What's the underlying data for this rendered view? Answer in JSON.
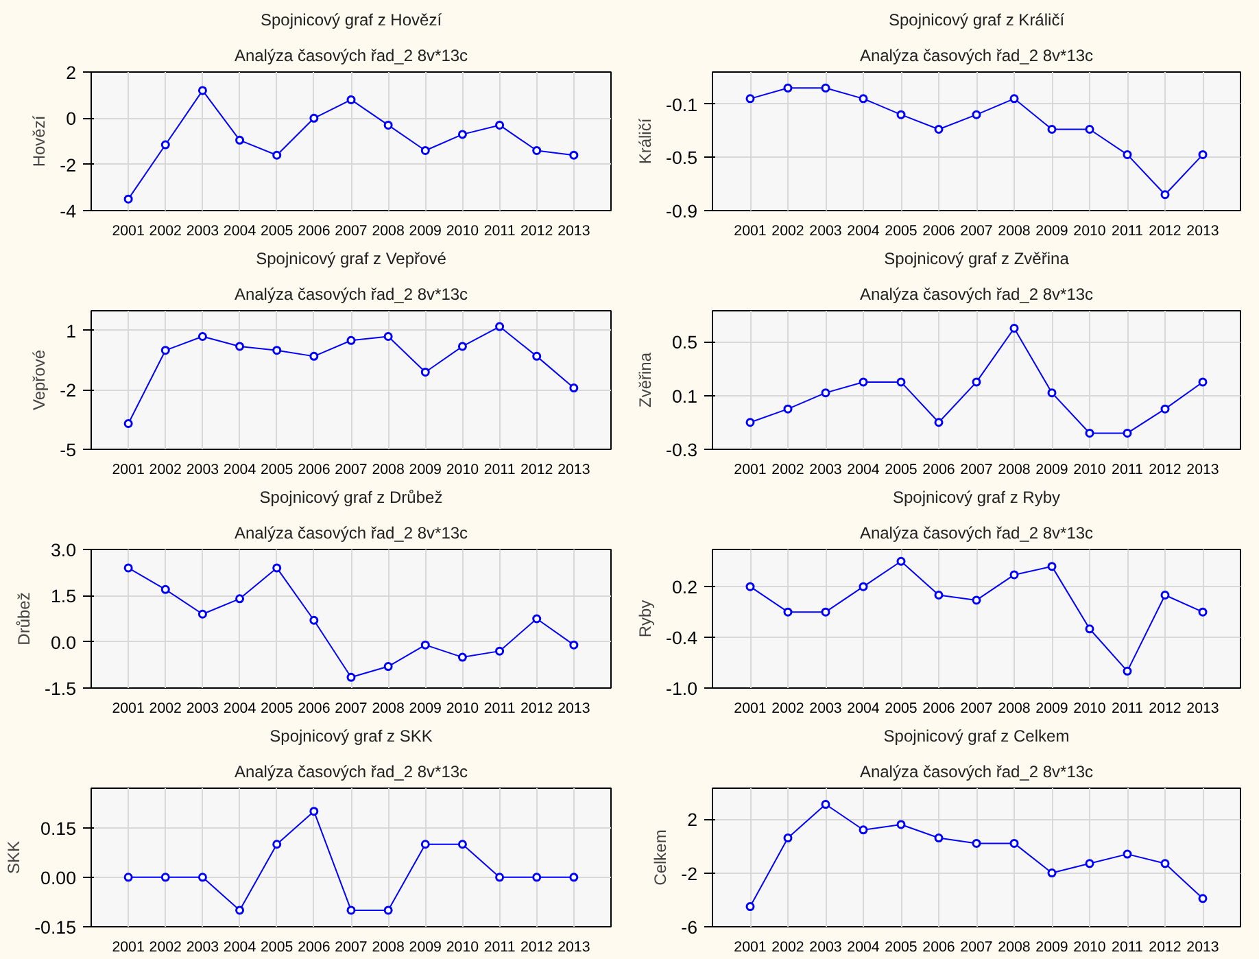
{
  "chart_data": [
    {
      "type": "line",
      "title": "Spojnicový graf z Hovězí",
      "subtitle": "Analýza časových řad_2 8v*13c",
      "ylabel": "Hovězí",
      "x": [
        2001,
        2002,
        2003,
        2004,
        2005,
        2006,
        2007,
        2008,
        2009,
        2010,
        2011,
        2012,
        2013
      ],
      "xlim": [
        2000,
        2014
      ],
      "xticks": [
        2001,
        2002,
        2003,
        2004,
        2005,
        2006,
        2007,
        2008,
        2009,
        2010,
        2011,
        2012,
        2013
      ],
      "ylim": [
        -4,
        2
      ],
      "yticks": [
        -4,
        -2,
        0,
        2
      ],
      "grid": true,
      "marker": "circle",
      "line_style": "solid",
      "series": [
        {
          "color": "#0000ff",
          "values": [
            -3.5,
            -1.15,
            1.2,
            -0.95,
            -1.6,
            0.0,
            0.8,
            -0.3,
            -1.4,
            -0.7,
            -0.3,
            -1.4,
            -1.6
          ]
        }
      ]
    },
    {
      "type": "line",
      "title": "Spojnicový graf z Králičí",
      "subtitle": "Analýza časových řad_2 8v*13c",
      "ylabel": "Králičí",
      "x": [
        2001,
        2002,
        2003,
        2004,
        2005,
        2006,
        2007,
        2008,
        2009,
        2010,
        2011,
        2012,
        2013
      ],
      "xlim": [
        2000,
        2014
      ],
      "xticks": [
        2001,
        2002,
        2003,
        2004,
        2005,
        2006,
        2007,
        2008,
        2009,
        2010,
        2011,
        2012,
        2013
      ],
      "ylim": [
        -0.9,
        0.14
      ],
      "yticks": [
        -0.9,
        -0.5,
        -0.1
      ],
      "grid": true,
      "marker": "circle",
      "line_style": "solid",
      "series": [
        {
          "color": "#0000ff",
          "values": [
            -0.06,
            0.02,
            0.02,
            -0.06,
            -0.18,
            -0.29,
            -0.18,
            -0.06,
            -0.29,
            -0.29,
            -0.48,
            -0.78,
            -0.48
          ]
        }
      ]
    },
    {
      "type": "line",
      "title": "Spojnicový graf z Vepřové",
      "subtitle": "Analýza časových řad_2 8v*13c",
      "ylabel": "Vepřové",
      "x": [
        2001,
        2002,
        2003,
        2004,
        2005,
        2006,
        2007,
        2008,
        2009,
        2010,
        2011,
        2012,
        2013
      ],
      "xlim": [
        2000,
        2014
      ],
      "xticks": [
        2001,
        2002,
        2003,
        2004,
        2005,
        2006,
        2007,
        2008,
        2009,
        2010,
        2011,
        2012,
        2013
      ],
      "ylim": [
        -5,
        2
      ],
      "yticks": [
        -5,
        -2,
        1
      ],
      "grid": true,
      "marker": "circle",
      "line_style": "solid",
      "series": [
        {
          "color": "#0000ff",
          "values": [
            -3.7,
            0.0,
            0.7,
            0.2,
            0.0,
            -0.3,
            0.5,
            0.7,
            -1.1,
            0.2,
            1.2,
            -0.3,
            -1.9
          ]
        }
      ]
    },
    {
      "type": "line",
      "title": "Spojnicový graf z Zvěřina",
      "subtitle": "Analýza časových řad_2 8v*13c",
      "ylabel": "Zvěřina",
      "x": [
        2001,
        2002,
        2003,
        2004,
        2005,
        2006,
        2007,
        2008,
        2009,
        2010,
        2011,
        2012,
        2013
      ],
      "xlim": [
        2000,
        2014
      ],
      "xticks": [
        2001,
        2002,
        2003,
        2004,
        2005,
        2006,
        2007,
        2008,
        2009,
        2010,
        2011,
        2012,
        2013
      ],
      "ylim": [
        -0.3,
        0.73
      ],
      "yticks": [
        -0.3,
        0.1,
        0.5
      ],
      "grid": true,
      "marker": "circle",
      "line_style": "solid",
      "series": [
        {
          "color": "#0000ff",
          "values": [
            -0.1,
            0.0,
            0.12,
            0.2,
            0.2,
            -0.1,
            0.2,
            0.6,
            0.12,
            -0.18,
            -0.18,
            0.0,
            0.2
          ]
        }
      ]
    },
    {
      "type": "line",
      "title": "Spojnicový graf z Drůbež",
      "subtitle": "Analýza časových řad_2 8v*13c",
      "ylabel": "Drůbež",
      "x": [
        2001,
        2002,
        2003,
        2004,
        2005,
        2006,
        2007,
        2008,
        2009,
        2010,
        2011,
        2012,
        2013
      ],
      "xlim": [
        2000,
        2014
      ],
      "xticks": [
        2001,
        2002,
        2003,
        2004,
        2005,
        2006,
        2007,
        2008,
        2009,
        2010,
        2011,
        2012,
        2013
      ],
      "ylim": [
        -1.5,
        3
      ],
      "yticks": [
        {
          "value": -1.5,
          "label": "-1.5"
        },
        {
          "value": 0,
          "label": "0.0"
        },
        {
          "value": 1.5,
          "label": "1.5"
        },
        {
          "value": 3,
          "label": "3.0"
        }
      ],
      "grid": true,
      "marker": "circle",
      "line_style": "solid",
      "series": [
        {
          "color": "#0000ff",
          "values": [
            2.4,
            1.7,
            0.9,
            1.4,
            2.4,
            0.7,
            -1.15,
            -0.8,
            -0.1,
            -0.5,
            -0.3,
            0.75,
            -0.1
          ]
        }
      ]
    },
    {
      "type": "line",
      "title": "Spojnicový graf z Ryby",
      "subtitle": "Analýza časových řad_2 8v*13c",
      "ylabel": "Ryby",
      "x": [
        2001,
        2002,
        2003,
        2004,
        2005,
        2006,
        2007,
        2008,
        2009,
        2010,
        2011,
        2012,
        2013
      ],
      "xlim": [
        2000,
        2014
      ],
      "xticks": [
        2001,
        2002,
        2003,
        2004,
        2005,
        2006,
        2007,
        2008,
        2009,
        2010,
        2011,
        2012,
        2013
      ],
      "ylim": [
        -1,
        0.64
      ],
      "yticks": [
        {
          "value": -1,
          "label": "-1.0"
        },
        -0.4,
        0.2
      ],
      "grid": true,
      "marker": "circle",
      "line_style": "solid",
      "series": [
        {
          "color": "#0000ff",
          "values": [
            0.2,
            -0.1,
            -0.1,
            0.2,
            0.5,
            0.1,
            0.04,
            0.34,
            0.44,
            -0.3,
            -0.8,
            0.1,
            -0.1
          ]
        }
      ]
    },
    {
      "type": "line",
      "title": "Spojnicový graf z SKK",
      "subtitle": "Analýza časových řad_2 8v*13c",
      "ylabel": "SKK",
      "x": [
        2001,
        2002,
        2003,
        2004,
        2005,
        2006,
        2007,
        2008,
        2009,
        2010,
        2011,
        2012,
        2013
      ],
      "xlim": [
        2000,
        2014
      ],
      "xticks": [
        2001,
        2002,
        2003,
        2004,
        2005,
        2006,
        2007,
        2008,
        2009,
        2010,
        2011,
        2012,
        2013
      ],
      "ylim": [
        -0.15,
        0.27
      ],
      "yticks": [
        -0.15,
        {
          "value": 0,
          "label": "0.00"
        },
        0.15
      ],
      "grid": true,
      "marker": "circle",
      "line_style": "solid",
      "series": [
        {
          "color": "#0000ff",
          "values": [
            0,
            0,
            0,
            -0.1,
            0.1,
            0.2,
            -0.1,
            -0.1,
            0.1,
            0.1,
            0,
            0,
            0
          ]
        }
      ]
    },
    {
      "type": "line",
      "title": "Spojnicový graf z Celkem",
      "subtitle": "Analýza časových řad_2 8v*13c",
      "ylabel": "Celkem",
      "x": [
        2001,
        2002,
        2003,
        2004,
        2005,
        2006,
        2007,
        2008,
        2009,
        2010,
        2011,
        2012,
        2013
      ],
      "xlim": [
        2000,
        2014
      ],
      "xticks": [
        2001,
        2002,
        2003,
        2004,
        2005,
        2006,
        2007,
        2008,
        2009,
        2010,
        2011,
        2012,
        2013
      ],
      "ylim": [
        -6,
        4.3
      ],
      "yticks": [
        -6,
        -2,
        2
      ],
      "grid": true,
      "marker": "circle",
      "line_style": "solid",
      "series": [
        {
          "color": "#0000ff",
          "values": [
            -4.5,
            0.6,
            3.1,
            1.2,
            1.6,
            0.6,
            0.2,
            0.2,
            -2.0,
            -1.3,
            -0.6,
            -1.3,
            -3.9
          ]
        }
      ]
    }
  ]
}
